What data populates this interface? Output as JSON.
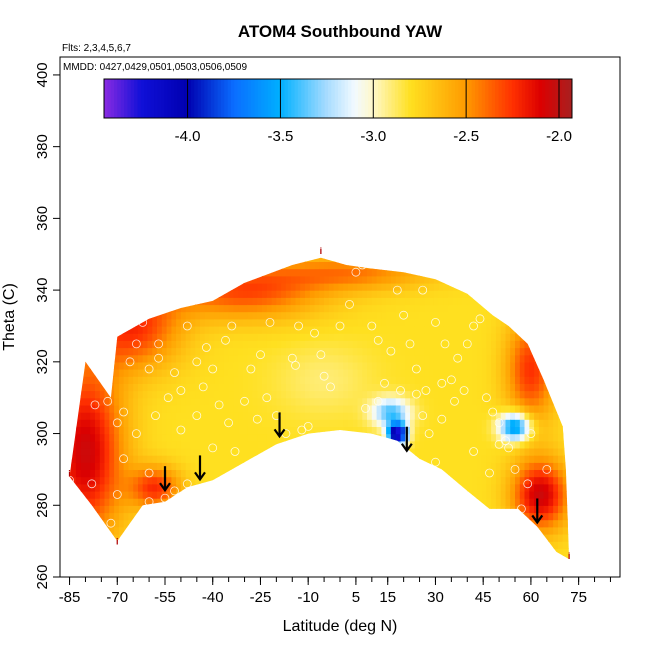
{
  "chart_data": {
    "type": "heatmap",
    "title": "ATOM4 Southbound YAW",
    "subtitle_flights": "Flts: 2,3,4,5,6,7",
    "subtitle_dates": "MMDD: 0427,0429,0501,0503,0506,0509",
    "xlabel": "Latitude (deg N)",
    "ylabel": "Theta (C)",
    "xlim": [
      -88,
      88
    ],
    "ylim": [
      260,
      405
    ],
    "x_ticks": [
      -85,
      -70,
      -55,
      -40,
      -25,
      -10,
      5,
      15,
      30,
      45,
      60,
      75
    ],
    "x_tick_labels": [
      "-85",
      "-70",
      "-55",
      "-40",
      "-25",
      "-10",
      "5",
      "15",
      "30",
      "45",
      "60",
      "75"
    ],
    "x_minor_step": 5,
    "y_ticks": [
      260,
      280,
      300,
      320,
      340,
      360,
      380,
      400
    ],
    "y_tick_labels": [
      "260",
      "280",
      "300",
      "320",
      "340",
      "360",
      "380",
      "400"
    ],
    "colorbar": {
      "range": [
        -4.45,
        -1.93
      ],
      "ticks": [
        -4.0,
        -3.5,
        -3.0,
        -2.5,
        -2.0
      ],
      "tick_labels": [
        "-4.0",
        "-3.5",
        "-3.0",
        "-2.5",
        "-2.0"
      ],
      "stops": [
        {
          "v": -4.45,
          "c": "#8a2be2"
        },
        {
          "v": -4.25,
          "c": "#1010d8"
        },
        {
          "v": -4.0,
          "c": "#0000b0"
        },
        {
          "v": -3.75,
          "c": "#0a6dff"
        },
        {
          "v": -3.5,
          "c": "#00b0ff"
        },
        {
          "v": -3.25,
          "c": "#a8dcff"
        },
        {
          "v": -3.1,
          "c": "#f2faff"
        },
        {
          "v": -3.0,
          "c": "#fff8c8"
        },
        {
          "v": -2.8,
          "c": "#ffe020"
        },
        {
          "v": -2.5,
          "c": "#ff9a00"
        },
        {
          "v": -2.25,
          "c": "#ff3000"
        },
        {
          "v": -2.1,
          "c": "#dc0000"
        },
        {
          "v": -1.93,
          "c": "#a82020"
        }
      ]
    },
    "domain_top": [
      [
        -72,
        310
      ],
      [
        -70,
        327
      ],
      [
        -60,
        332
      ],
      [
        -50,
        335
      ],
      [
        -40,
        337
      ],
      [
        -30,
        342
      ],
      [
        -15,
        347
      ],
      [
        -6,
        349
      ],
      [
        2,
        347
      ],
      [
        10,
        346
      ],
      [
        20,
        345
      ],
      [
        30,
        343
      ],
      [
        40,
        339
      ],
      [
        48,
        333
      ],
      [
        53,
        330
      ],
      [
        59,
        325
      ],
      [
        64,
        315
      ],
      [
        70,
        302
      ],
      [
        71,
        290
      ],
      [
        72,
        265
      ]
    ],
    "domain_bottom": [
      [
        -85,
        288
      ],
      [
        -78,
        280
      ],
      [
        -70,
        270
      ],
      [
        -62,
        280
      ],
      [
        -55,
        281
      ],
      [
        -48,
        285
      ],
      [
        -40,
        287
      ],
      [
        -30,
        292
      ],
      [
        -20,
        297
      ],
      [
        -10,
        300
      ],
      [
        0,
        301
      ],
      [
        10,
        300
      ],
      [
        18,
        298
      ],
      [
        25,
        293
      ],
      [
        32,
        290
      ],
      [
        40,
        284
      ],
      [
        47,
        279
      ],
      [
        56,
        279
      ],
      [
        62,
        274
      ],
      [
        68,
        267
      ],
      [
        72,
        265
      ]
    ],
    "domain_left_top": [
      -85,
      288
    ],
    "domain_left_mid": [
      -80,
      320
    ],
    "field_base_value": -2.8,
    "field_features": [
      {
        "x": -80,
        "y": 295,
        "amp": 0.75,
        "sx": 12,
        "sy": 25
      },
      {
        "x": -65,
        "y": 330,
        "amp": 0.55,
        "sx": 15,
        "sy": 12
      },
      {
        "x": -30,
        "y": 340,
        "amp": 0.5,
        "sx": 25,
        "sy": 8
      },
      {
        "x": 5,
        "y": 345,
        "amp": 0.35,
        "sx": 25,
        "sy": 5
      },
      {
        "x": 60,
        "y": 318,
        "amp": 0.55,
        "sx": 8,
        "sy": 15
      },
      {
        "x": 63,
        "y": 283,
        "amp": 0.75,
        "sx": 9,
        "sy": 10
      },
      {
        "x": -58,
        "y": 285,
        "amp": 0.55,
        "sx": 8,
        "sy": 6
      },
      {
        "x": -5,
        "y": 315,
        "amp": -0.1,
        "sx": 15,
        "sy": 10
      },
      {
        "x": 18,
        "y": 300,
        "amp": -1.5,
        "sx": 3,
        "sy": 3
      },
      {
        "x": 16,
        "y": 306,
        "amp": -0.6,
        "sx": 6,
        "sy": 4
      },
      {
        "x": 55,
        "y": 302,
        "amp": -0.9,
        "sx": 5,
        "sy": 4
      }
    ],
    "arrows": [
      [
        -55,
        287
      ],
      [
        -44,
        290
      ],
      [
        -19,
        302
      ],
      [
        21,
        298
      ],
      [
        62,
        278
      ]
    ],
    "obs_points": [
      [
        -85,
        287
      ],
      [
        -78,
        286
      ],
      [
        -72,
        275
      ],
      [
        -70,
        283
      ],
      [
        -68,
        306
      ],
      [
        -68,
        293
      ],
      [
        -64,
        300
      ],
      [
        -60,
        289
      ],
      [
        -60,
        281
      ],
      [
        -55,
        282
      ],
      [
        -52,
        284
      ],
      [
        -48,
        286
      ],
      [
        -66,
        320
      ],
      [
        -64,
        325
      ],
      [
        -62,
        331
      ],
      [
        -60,
        318
      ],
      [
        -57,
        325
      ],
      [
        -57,
        321
      ],
      [
        -54,
        310
      ],
      [
        -52,
        317
      ],
      [
        -50,
        301
      ],
      [
        -48,
        330
      ],
      [
        -45,
        305
      ],
      [
        -43,
        313
      ],
      [
        -42,
        324
      ],
      [
        -40,
        318
      ],
      [
        -38,
        308
      ],
      [
        -35,
        303
      ],
      [
        -33,
        295
      ],
      [
        -30,
        309
      ],
      [
        -28,
        318
      ],
      [
        -25,
        322
      ],
      [
        -23,
        310
      ],
      [
        -20,
        305
      ],
      [
        -17,
        300
      ],
      [
        -15,
        321
      ],
      [
        -13,
        330
      ],
      [
        -10,
        302
      ],
      [
        -8,
        328
      ],
      [
        -5,
        316
      ],
      [
        -3,
        313
      ],
      [
        0,
        330
      ],
      [
        3,
        336
      ],
      [
        5,
        345
      ],
      [
        7,
        347
      ],
      [
        10,
        330
      ],
      [
        12,
        326
      ],
      [
        14,
        314
      ],
      [
        16,
        323
      ],
      [
        18,
        340
      ],
      [
        20,
        333
      ],
      [
        22,
        325
      ],
      [
        24,
        318
      ],
      [
        26,
        305
      ],
      [
        28,
        300
      ],
      [
        30,
        292
      ],
      [
        32,
        304
      ],
      [
        35,
        315
      ],
      [
        37,
        321
      ],
      [
        40,
        325
      ],
      [
        42,
        330
      ],
      [
        44,
        332
      ],
      [
        46,
        310
      ],
      [
        48,
        306
      ],
      [
        50,
        303
      ],
      [
        52,
        298
      ],
      [
        53,
        296
      ],
      [
        55,
        290
      ],
      [
        57,
        279
      ],
      [
        59,
        286
      ],
      [
        -77,
        308
      ],
      [
        -75,
        317
      ],
      [
        -73,
        309
      ],
      [
        -70,
        303
      ],
      [
        -34,
        330
      ],
      [
        -36,
        326
      ],
      [
        -22,
        331
      ],
      [
        -14,
        319
      ],
      [
        -6,
        322
      ],
      [
        26,
        340
      ],
      [
        30,
        331
      ],
      [
        33,
        325
      ],
      [
        36,
        309
      ],
      [
        39,
        312
      ],
      [
        42,
        295
      ],
      [
        -45,
        320
      ],
      [
        -26,
        304
      ],
      [
        -12,
        301
      ],
      [
        8,
        307
      ],
      [
        12,
        309
      ],
      [
        19,
        312
      ],
      [
        24,
        311
      ],
      [
        27,
        312
      ],
      [
        32,
        314
      ],
      [
        47,
        289
      ],
      [
        50,
        297
      ],
      [
        60,
        300
      ],
      [
        65,
        290
      ],
      [
        -58,
        305
      ],
      [
        -50,
        312
      ],
      [
        -40,
        296
      ]
    ],
    "tick_marks_top": [
      [
        -6,
        350
      ],
      [
        -70,
        269
      ],
      [
        72,
        265
      ],
      [
        -85,
        288
      ]
    ]
  }
}
